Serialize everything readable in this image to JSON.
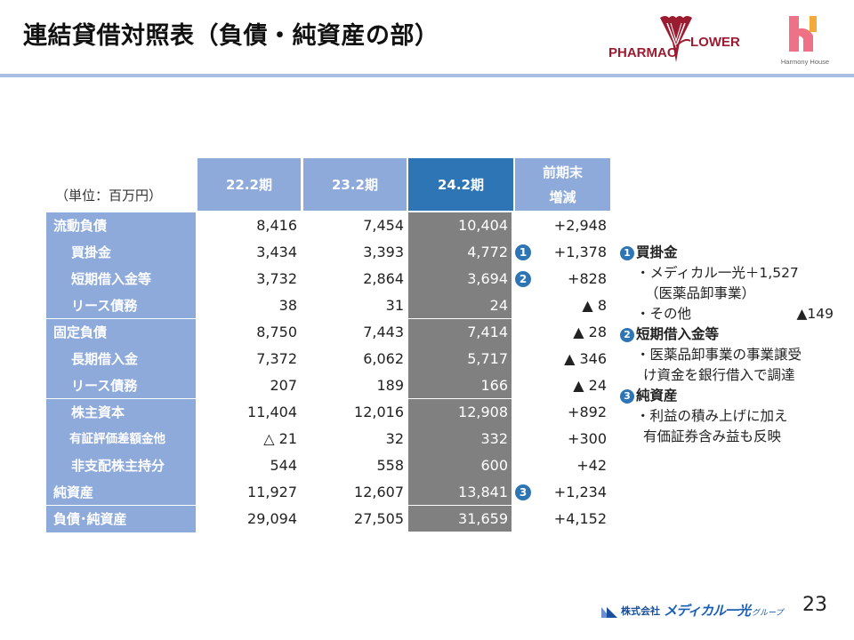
{
  "title": "連結貸借対照表（負債・純資産の部）",
  "logos": {
    "pharmaflower": {
      "left": "PHARMAC",
      "right": "LOWER",
      "color": "#9b1b30"
    },
    "harmony_house": {
      "label": "Harmony House",
      "pink": "#ef7185",
      "orange": "#f4a93b"
    }
  },
  "unit": "（単位：百万円）",
  "table": {
    "headers": [
      "22.2期",
      "23.2期",
      "24.2期",
      "前期末",
      "増減"
    ],
    "rows": [
      {
        "label": "流動負債",
        "v1": "8,416",
        "v2": "7,454",
        "v3": "10,404",
        "diff": "+2,948",
        "badge": ""
      },
      {
        "label": "買掛金",
        "v1": "3,434",
        "v2": "3,393",
        "v3": "4,772",
        "diff": "+1,378",
        "badge": "1"
      },
      {
        "label": "短期借入金等",
        "v1": "3,732",
        "v2": "2,864",
        "v3": "3,694",
        "diff": "+828",
        "badge": "2"
      },
      {
        "label": "リース債務",
        "v1": "38",
        "v2": "31",
        "v3": "24",
        "diff": "▲ 8",
        "badge": ""
      },
      {
        "label": "固定負債",
        "v1": "8,750",
        "v2": "7,443",
        "v3": "7,414",
        "diff": "▲ 28",
        "badge": ""
      },
      {
        "label": "長期借入金",
        "v1": "7,372",
        "v2": "6,062",
        "v3": "5,717",
        "diff": "▲ 346",
        "badge": ""
      },
      {
        "label": "リース債務",
        "v1": "207",
        "v2": "189",
        "v3": "166",
        "diff": "▲ 24",
        "badge": ""
      },
      {
        "label": "株主資本",
        "v1": "11,404",
        "v2": "12,016",
        "v3": "12,908",
        "diff": "+892",
        "badge": ""
      },
      {
        "label": "有証評価差額金他",
        "v1": "△ 21",
        "v2": "32",
        "v3": "332",
        "diff": "+300",
        "badge": ""
      },
      {
        "label": "非支配株主持分",
        "v1": "544",
        "v2": "558",
        "v3": "600",
        "diff": "+42",
        "badge": ""
      },
      {
        "label": "純資産",
        "v1": "11,927",
        "v2": "12,607",
        "v3": "13,841",
        "diff": "+1,234",
        "badge": "3"
      },
      {
        "label": "負債･純資産",
        "v1": "29,094",
        "v2": "27,505",
        "v3": "31,659",
        "diff": "+4,152",
        "badge": ""
      }
    ]
  },
  "notes": [
    {
      "num": "1",
      "heading": "買掛金",
      "lines": [
        "・メディカル一光＋1,527",
        "（医薬品卸事業）",
        "・その他",
        "▲149"
      ]
    },
    {
      "num": "2",
      "heading": "短期借入金等",
      "lines": [
        "・医薬品卸事業の事業譲受",
        "け資金を銀行借入で調達"
      ]
    },
    {
      "num": "3",
      "heading": "純資産",
      "lines": [
        "・利益の積み上げに加え",
        "有価証券含み益も反映"
      ]
    }
  ],
  "footer": {
    "company_prefix": "株式会社",
    "company_name": "メディカル一光",
    "group": "グループ",
    "page": "23"
  },
  "colors": {
    "header_blue": "#8eaadb",
    "current_blue": "#2e75b6",
    "current_col_gray": "#808080",
    "rule": "#a9bde2"
  }
}
